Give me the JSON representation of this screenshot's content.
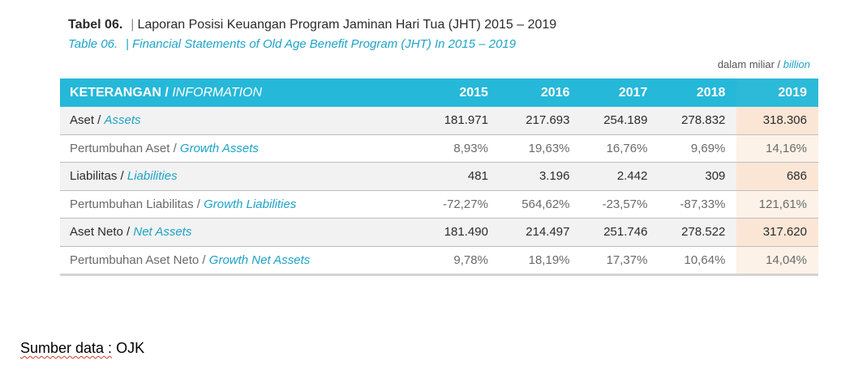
{
  "title": {
    "id_id": "Tabel 06.",
    "separator": "|",
    "text_id": "Laporan Posisi Keuangan Program Jaminan Hari Tua (JHT) 2015 – 2019",
    "id_en": "Table 06.",
    "text_en": "Financial Statements of Old Age Benefit Program (JHT) In 2015 – 2019"
  },
  "unit": {
    "id": "dalam miliar /",
    "en": "billion"
  },
  "table": {
    "header": {
      "label_id": "KETERANGAN /",
      "label_en": "INFORMATION",
      "years": [
        "2015",
        "2016",
        "2017",
        "2018",
        "2019"
      ]
    },
    "rows": [
      {
        "label_id": "Aset /",
        "label_en": "Assets",
        "values": [
          "181.971",
          "217.693",
          "254.189",
          "278.832",
          "318.306"
        ]
      },
      {
        "label_id": "Pertumbuhan Aset /",
        "label_en": "Growth Assets",
        "values": [
          "8,93%",
          "19,63%",
          "16,76%",
          "9,69%",
          "14,16%"
        ]
      },
      {
        "label_id": "Liabilitas /",
        "label_en": "Liabilities",
        "values": [
          "481",
          "3.196",
          "2.442",
          "309",
          "686"
        ]
      },
      {
        "label_id": "Pertumbuhan Liabilitas /",
        "label_en": "Growth Liabilities",
        "values": [
          "-72,27%",
          "564,62%",
          "-23,57%",
          "-87,33%",
          "121,61%"
        ]
      },
      {
        "label_id": "Aset Neto /",
        "label_en": "Net Assets",
        "values": [
          "181.490",
          "214.497",
          "251.746",
          "278.522",
          "317.620"
        ]
      },
      {
        "label_id": "Pertumbuhan Aset Neto /",
        "label_en": "Growth Net Assets",
        "values": [
          "9,78%",
          "18,19%",
          "17,37%",
          "10,64%",
          "14,04%"
        ]
      }
    ]
  },
  "source": {
    "label": "Sumber data :",
    "value": "OJK"
  },
  "colors": {
    "accent": "#25b8d9",
    "english_text": "#1ea3c8",
    "highlight_main": "#fbe6d6",
    "highlight_sub": "#fdf2e8",
    "row_main_bg": "#f2f2f2"
  }
}
